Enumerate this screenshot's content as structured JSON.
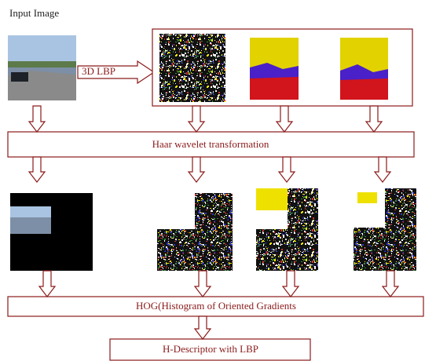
{
  "header": {
    "title": "Input Image"
  },
  "nodes": [
    {
      "label": "3D LBP"
    },
    {
      "label": "Haar wavelet transformation"
    },
    {
      "label": "HOG(Histogram of Oriented Gradients"
    },
    {
      "label": "H-Descriptor with LBP"
    }
  ]
}
